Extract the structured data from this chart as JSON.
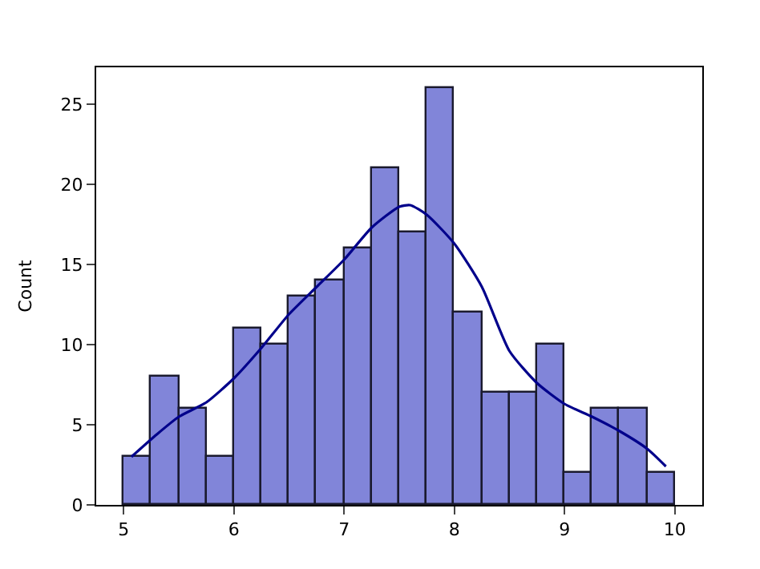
{
  "chart_data": {
    "type": "histogram",
    "ylabel": "Count",
    "bins": [
      5.0,
      5.25,
      5.5,
      5.75,
      6.0,
      6.25,
      6.5,
      6.75,
      7.0,
      7.25,
      7.5,
      7.75,
      8.0,
      8.25,
      8.5,
      8.75,
      9.0,
      9.25,
      9.5,
      9.75,
      10.0
    ],
    "values": [
      3,
      8,
      6,
      3,
      11,
      10,
      13,
      14,
      16,
      21,
      17,
      26,
      12,
      7,
      7,
      10,
      2,
      6,
      6,
      2
    ],
    "color": "#8185d9",
    "series": [
      {
        "type": "line",
        "color": "#00008b",
        "x": [
          5.07,
          5.3,
          5.5,
          5.75,
          6.0,
          6.25,
          6.5,
          6.75,
          7.0,
          7.25,
          7.5,
          7.6,
          7.75,
          8.0,
          8.25,
          8.5,
          8.75,
          9.0,
          9.25,
          9.5,
          9.75,
          9.92
        ],
        "values": [
          3.0,
          4.4,
          5.5,
          6.4,
          7.9,
          9.8,
          11.9,
          13.6,
          15.3,
          17.3,
          18.6,
          18.7,
          18.1,
          16.3,
          13.6,
          9.6,
          7.6,
          6.3,
          5.5,
          4.6,
          3.5,
          2.4
        ]
      }
    ],
    "xlim": [
      4.75,
      10.25
    ],
    "xticks": [
      5,
      6,
      7,
      8,
      9,
      10
    ],
    "ylim": [
      0,
      27.3
    ],
    "yticks": [
      0,
      5,
      10,
      15,
      20,
      25
    ]
  }
}
